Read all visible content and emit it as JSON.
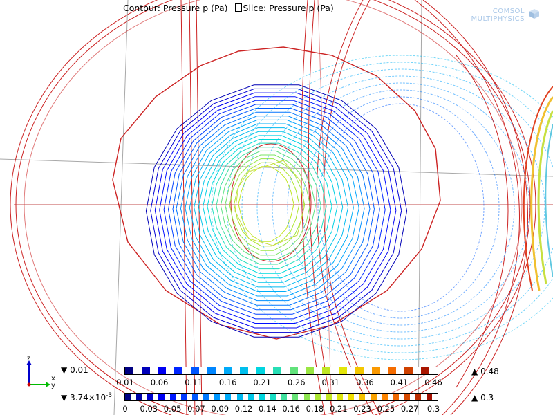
{
  "title": {
    "contour": "Contour: Pressure p (Pa)",
    "slice": "Slice: Pressure p (Pa)"
  },
  "logo": {
    "line1": "COMSOL",
    "line2": "MULTIPHYSICS"
  },
  "contour_legend": {
    "min_label": "0.01",
    "max_label": "0.48",
    "ticks": [
      "0.01",
      "0.06",
      "0.11",
      "0.16",
      "0.21",
      "0.26",
      "0.31",
      "0.36",
      "0.41",
      "0.46"
    ]
  },
  "slice_legend": {
    "min_label": "3.74×10",
    "min_exp": "-3",
    "max_label": "0.3",
    "ticks": [
      "0",
      "0.03",
      "0.05",
      "0.07",
      "0.09",
      "0.12",
      "0.14",
      "0.16",
      "0.18",
      "0.21",
      "0.23",
      "0.25",
      "0.27",
      "0.3"
    ]
  },
  "axes": {
    "z": "z",
    "x": "x",
    "y": "y"
  },
  "colors": {
    "geometry_edges": "#cc2222",
    "grid_lines": "#b0b0b0",
    "contour_low": "#0000a0",
    "contour_high": "#a00000"
  }
}
